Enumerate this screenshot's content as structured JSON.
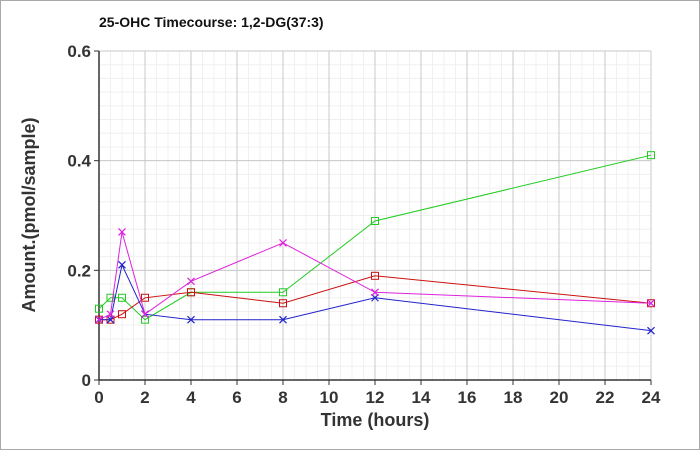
{
  "chart_data": {
    "type": "line",
    "title": "25-OHC Timecourse: 1,2-DG(37:3)",
    "xlabel": "Time (hours)",
    "ylabel": "Amount.(pmol/sample)",
    "xlim": [
      0,
      24
    ],
    "ylim": [
      0,
      0.6
    ],
    "xticks": [
      0,
      2,
      4,
      6,
      8,
      10,
      12,
      14,
      16,
      18,
      20,
      22,
      24
    ],
    "yticks": [
      0,
      0.2,
      0.4,
      0.6
    ],
    "xtick_labels": [
      "0",
      "2",
      "4",
      "6",
      "8",
      "10",
      "12",
      "14",
      "16",
      "18",
      "20",
      "22",
      "24"
    ],
    "ytick_labels": [
      "0",
      "0.2",
      "0.4",
      "0.6"
    ],
    "grid": true,
    "minor_grid": true,
    "legend": "none",
    "series": [
      {
        "color": "#22cc22",
        "marker": "square",
        "x": [
          0,
          0.5,
          1,
          2,
          4,
          8,
          12,
          24
        ],
        "y": [
          0.13,
          0.15,
          0.15,
          0.11,
          0.16,
          0.16,
          0.29,
          0.41
        ]
      },
      {
        "color": "#cc1111",
        "marker": "square",
        "x": [
          0,
          0.5,
          1,
          2,
          4,
          8,
          12,
          24
        ],
        "y": [
          0.11,
          0.11,
          0.12,
          0.15,
          0.16,
          0.14,
          0.19,
          0.14
        ]
      },
      {
        "color": "#2222cc",
        "marker": "x",
        "x": [
          0,
          0.5,
          1,
          2,
          4,
          8,
          12,
          24
        ],
        "y": [
          0.11,
          0.11,
          0.21,
          0.12,
          0.11,
          0.11,
          0.15,
          0.09
        ]
      },
      {
        "color": "#dd22dd",
        "marker": "x",
        "x": [
          0,
          0.5,
          1,
          2,
          4,
          8,
          12,
          24
        ],
        "y": [
          0.11,
          0.12,
          0.27,
          0.12,
          0.18,
          0.25,
          0.16,
          0.14
        ]
      }
    ]
  }
}
